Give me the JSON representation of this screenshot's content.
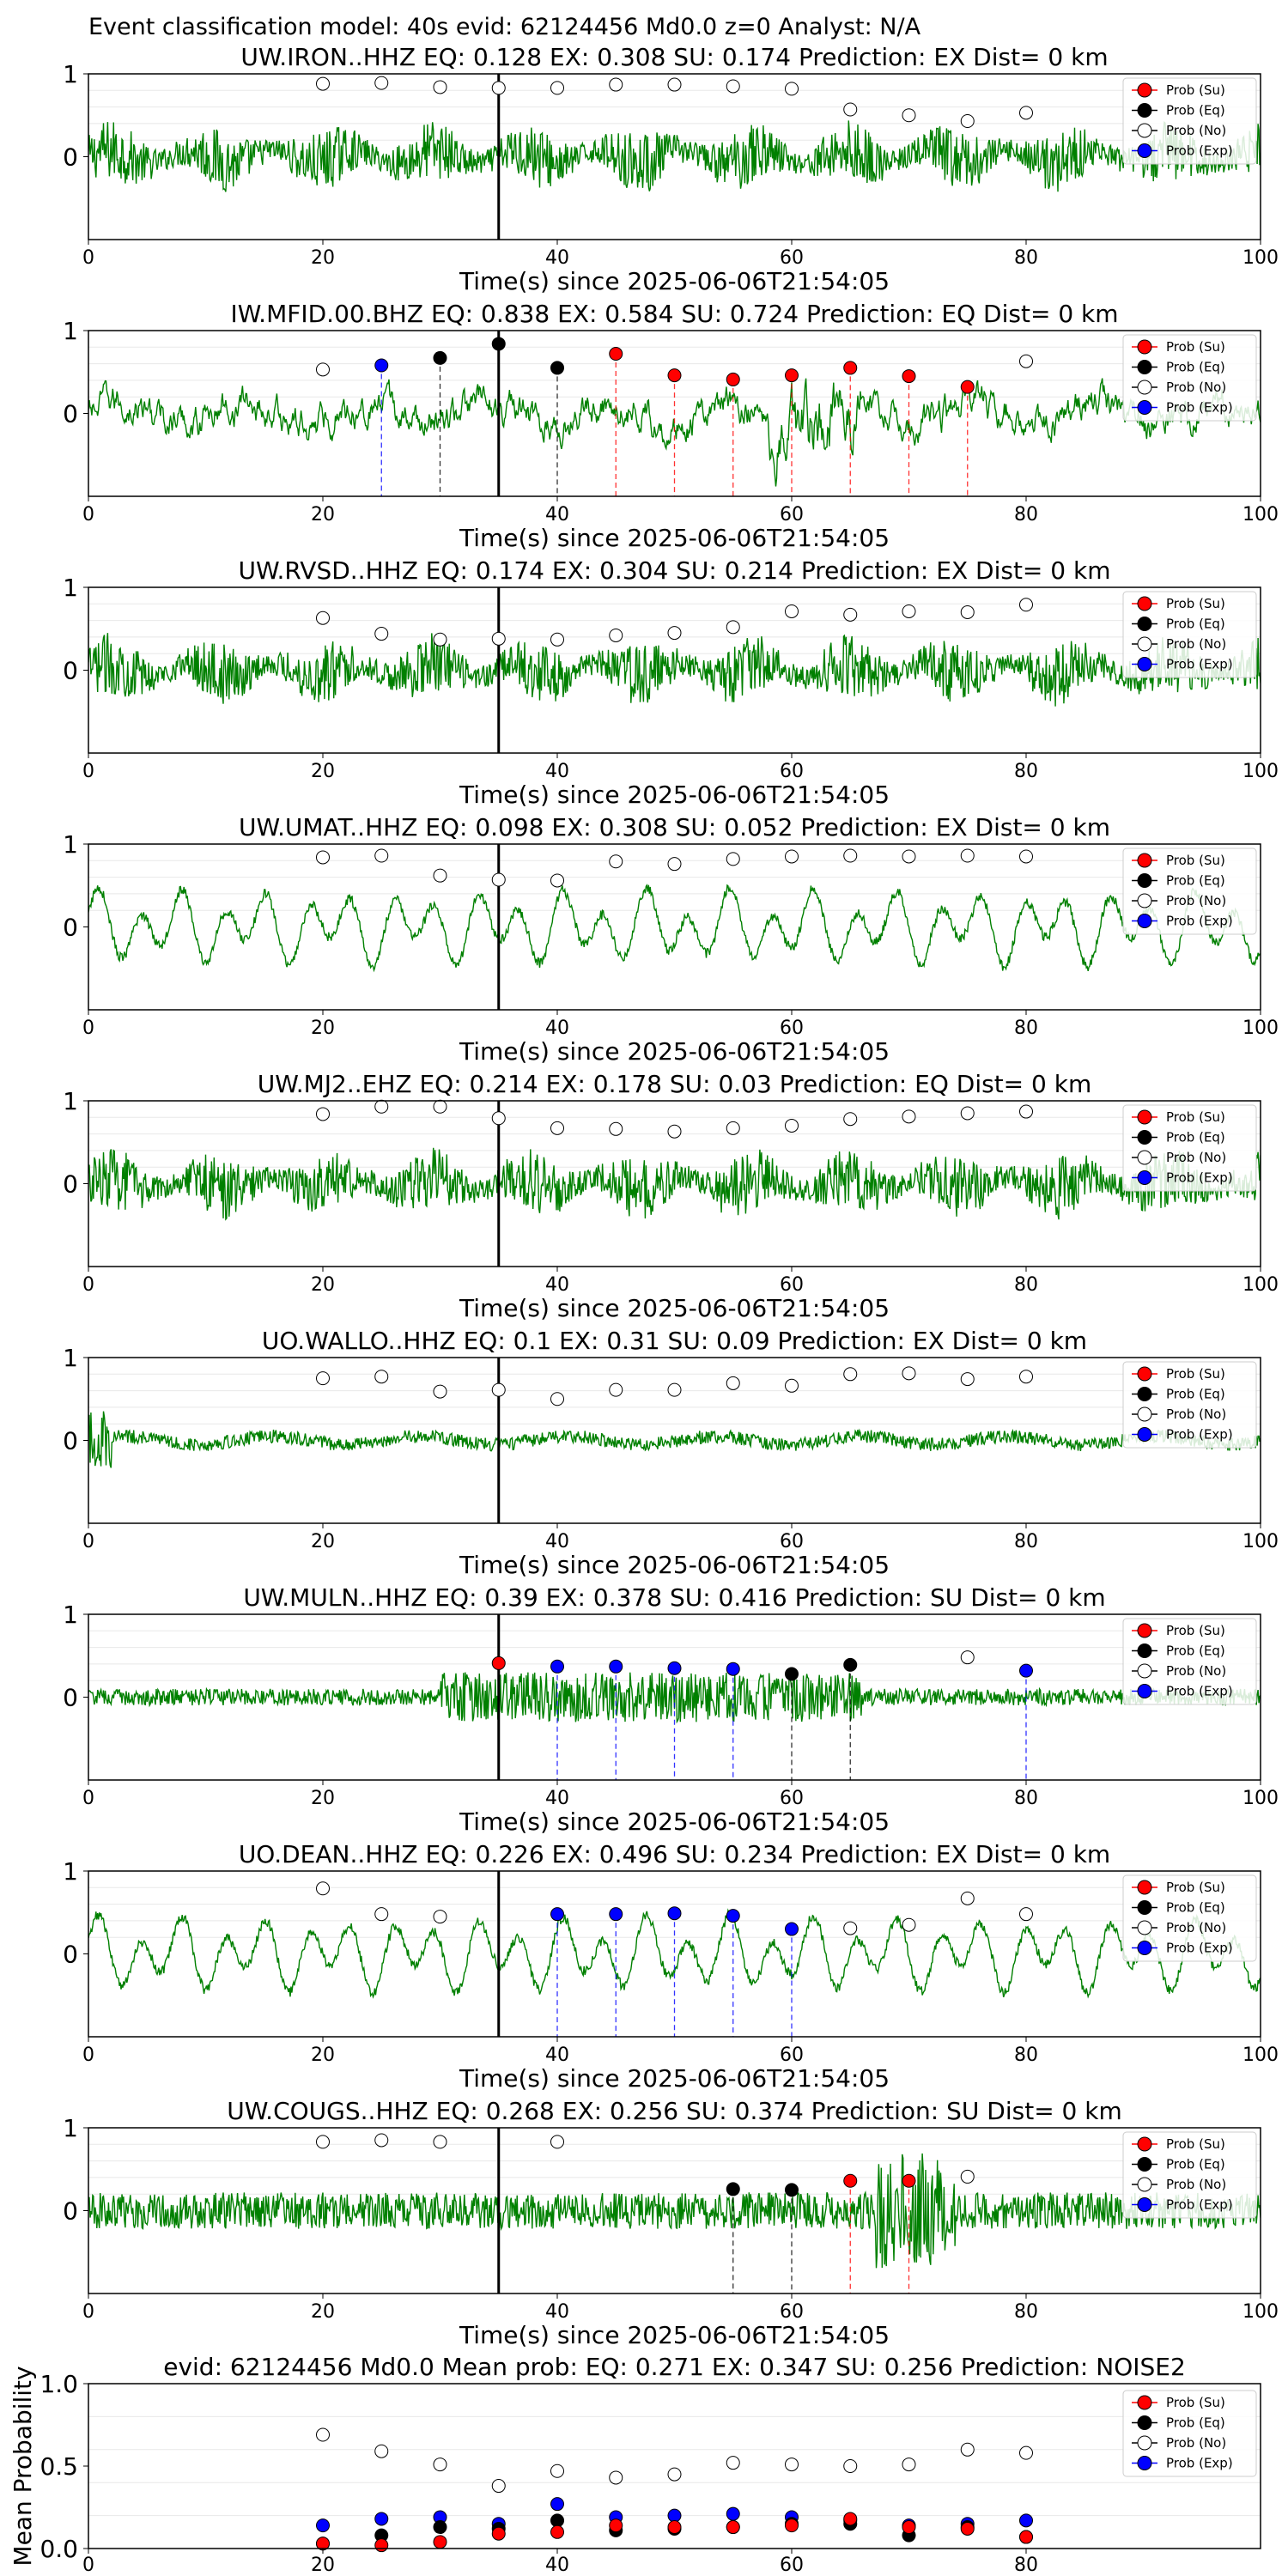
{
  "figure_title": "Event classification model: 40s evid: 62124456 Md0.0 z=0 Analyst: N/A",
  "legend_labels": [
    "Prob (Su)",
    "Prob (Eq)",
    "Prob (No)",
    "Prob (Exp)"
  ],
  "colors": {
    "su": "#ff0000",
    "eq": "#000000",
    "no": "#ffffff",
    "exp": "#0000ff",
    "trace": "#008000",
    "marker": "#000000"
  },
  "xlabel": "Time(s) since 2025-06-06T21:54:05",
  "chart_data": [
    {
      "type": "line",
      "station": "UW.IRON..HHZ",
      "title": "UW.IRON..HHZ   EQ: 0.128  EX: 0.308  SU: 0.174   Prediction: EX    Dist= 0 km",
      "xlim": [
        0,
        100
      ],
      "xticks": [
        0,
        20,
        40,
        60,
        80,
        100
      ],
      "yticks": [
        "1",
        "0"
      ],
      "marker_time": 35,
      "trace_style": "high",
      "points": [
        {
          "x": 20,
          "y": 0.88,
          "cls": "no"
        },
        {
          "x": 25,
          "y": 0.89,
          "cls": "no"
        },
        {
          "x": 30,
          "y": 0.84,
          "cls": "no"
        },
        {
          "x": 35,
          "y": 0.83,
          "cls": "no"
        },
        {
          "x": 40,
          "y": 0.83,
          "cls": "no"
        },
        {
          "x": 45,
          "y": 0.87,
          "cls": "no"
        },
        {
          "x": 50,
          "y": 0.87,
          "cls": "no"
        },
        {
          "x": 55,
          "y": 0.85,
          "cls": "no"
        },
        {
          "x": 60,
          "y": 0.82,
          "cls": "no"
        },
        {
          "x": 65,
          "y": 0.57,
          "cls": "no"
        },
        {
          "x": 70,
          "y": 0.5,
          "cls": "no"
        },
        {
          "x": 75,
          "y": 0.43,
          "cls": "no"
        },
        {
          "x": 80,
          "y": 0.53,
          "cls": "no"
        }
      ]
    },
    {
      "type": "line",
      "station": "IW.MFID.00.BHZ",
      "title": "IW.MFID.00.BHZ   EQ: 0.838  EX: 0.584  SU: 0.724   Prediction: EQ    Dist= 0 km",
      "xlim": [
        0,
        100
      ],
      "xticks": [
        0,
        20,
        40,
        60,
        80,
        100
      ],
      "yticks": [
        "1",
        "0"
      ],
      "marker_time": 35,
      "trace_style": "medium",
      "points": [
        {
          "x": 20,
          "y": 0.53,
          "cls": "no"
        },
        {
          "x": 25,
          "y": 0.58,
          "cls": "exp"
        },
        {
          "x": 30,
          "y": 0.67,
          "cls": "eq"
        },
        {
          "x": 35,
          "y": 0.84,
          "cls": "eq"
        },
        {
          "x": 40,
          "y": 0.55,
          "cls": "eq"
        },
        {
          "x": 45,
          "y": 0.72,
          "cls": "su"
        },
        {
          "x": 50,
          "y": 0.46,
          "cls": "su"
        },
        {
          "x": 55,
          "y": 0.41,
          "cls": "su"
        },
        {
          "x": 60,
          "y": 0.46,
          "cls": "su"
        },
        {
          "x": 65,
          "y": 0.55,
          "cls": "su"
        },
        {
          "x": 70,
          "y": 0.45,
          "cls": "su"
        },
        {
          "x": 75,
          "y": 0.32,
          "cls": "su"
        },
        {
          "x": 80,
          "y": 0.63,
          "cls": "no"
        }
      ]
    },
    {
      "type": "line",
      "station": "UW.RVSD..HHZ",
      "title": "UW.RVSD..HHZ   EQ: 0.174  EX: 0.304  SU: 0.214   Prediction: EX    Dist= 0 km",
      "xlim": [
        0,
        100
      ],
      "xticks": [
        0,
        20,
        40,
        60,
        80,
        100
      ],
      "yticks": [
        "1",
        "0"
      ],
      "marker_time": 35,
      "trace_style": "high",
      "points": [
        {
          "x": 20,
          "y": 0.63,
          "cls": "no"
        },
        {
          "x": 25,
          "y": 0.44,
          "cls": "no"
        },
        {
          "x": 30,
          "y": 0.37,
          "cls": "no"
        },
        {
          "x": 35,
          "y": 0.38,
          "cls": "no"
        },
        {
          "x": 40,
          "y": 0.37,
          "cls": "no"
        },
        {
          "x": 45,
          "y": 0.42,
          "cls": "no"
        },
        {
          "x": 50,
          "y": 0.45,
          "cls": "no"
        },
        {
          "x": 55,
          "y": 0.52,
          "cls": "no"
        },
        {
          "x": 60,
          "y": 0.71,
          "cls": "no"
        },
        {
          "x": 65,
          "y": 0.67,
          "cls": "no"
        },
        {
          "x": 70,
          "y": 0.71,
          "cls": "no"
        },
        {
          "x": 75,
          "y": 0.7,
          "cls": "no"
        },
        {
          "x": 80,
          "y": 0.79,
          "cls": "no"
        }
      ]
    },
    {
      "type": "line",
      "station": "UW.UMAT..HHZ",
      "title": "UW.UMAT..HHZ   EQ: 0.098  EX: 0.308  SU: 0.052   Prediction: EX    Dist= 0 km",
      "xlim": [
        0,
        100
      ],
      "xticks": [
        0,
        20,
        40,
        60,
        80,
        100
      ],
      "yticks": [
        "1",
        "0"
      ],
      "marker_time": 35,
      "trace_style": "wave",
      "points": [
        {
          "x": 20,
          "y": 0.84,
          "cls": "no"
        },
        {
          "x": 25,
          "y": 0.86,
          "cls": "no"
        },
        {
          "x": 30,
          "y": 0.62,
          "cls": "no"
        },
        {
          "x": 35,
          "y": 0.57,
          "cls": "no"
        },
        {
          "x": 40,
          "y": 0.56,
          "cls": "no"
        },
        {
          "x": 45,
          "y": 0.79,
          "cls": "no"
        },
        {
          "x": 50,
          "y": 0.76,
          "cls": "no"
        },
        {
          "x": 55,
          "y": 0.82,
          "cls": "no"
        },
        {
          "x": 60,
          "y": 0.85,
          "cls": "no"
        },
        {
          "x": 65,
          "y": 0.86,
          "cls": "no"
        },
        {
          "x": 70,
          "y": 0.85,
          "cls": "no"
        },
        {
          "x": 75,
          "y": 0.86,
          "cls": "no"
        },
        {
          "x": 80,
          "y": 0.85,
          "cls": "no"
        }
      ]
    },
    {
      "type": "line",
      "station": "UW.MJ2..EHZ",
      "title": "UW.MJ2..EHZ   EQ: 0.214  EX: 0.178  SU: 0.03   Prediction: EQ    Dist= 0 km",
      "xlim": [
        0,
        100
      ],
      "xticks": [
        0,
        20,
        40,
        60,
        80,
        100
      ],
      "yticks": [
        "1",
        "0"
      ],
      "marker_time": 35,
      "trace_style": "high",
      "points": [
        {
          "x": 20,
          "y": 0.84,
          "cls": "no"
        },
        {
          "x": 25,
          "y": 0.93,
          "cls": "no"
        },
        {
          "x": 30,
          "y": 0.93,
          "cls": "no"
        },
        {
          "x": 35,
          "y": 0.79,
          "cls": "no"
        },
        {
          "x": 40,
          "y": 0.67,
          "cls": "no"
        },
        {
          "x": 45,
          "y": 0.66,
          "cls": "no"
        },
        {
          "x": 50,
          "y": 0.63,
          "cls": "no"
        },
        {
          "x": 55,
          "y": 0.67,
          "cls": "no"
        },
        {
          "x": 60,
          "y": 0.7,
          "cls": "no"
        },
        {
          "x": 65,
          "y": 0.78,
          "cls": "no"
        },
        {
          "x": 70,
          "y": 0.81,
          "cls": "no"
        },
        {
          "x": 75,
          "y": 0.85,
          "cls": "no"
        },
        {
          "x": 80,
          "y": 0.87,
          "cls": "no"
        }
      ]
    },
    {
      "type": "line",
      "station": "UO.WALLO..HHZ",
      "title": "UO.WALLO..HHZ   EQ: 0.1  EX: 0.31  SU: 0.09   Prediction: EX    Dist= 0 km",
      "xlim": [
        0,
        100
      ],
      "xticks": [
        0,
        20,
        40,
        60,
        80,
        100
      ],
      "yticks": [
        "1",
        "0"
      ],
      "marker_time": 35,
      "trace_style": "low",
      "points": [
        {
          "x": 20,
          "y": 0.75,
          "cls": "no"
        },
        {
          "x": 25,
          "y": 0.77,
          "cls": "no"
        },
        {
          "x": 30,
          "y": 0.59,
          "cls": "no"
        },
        {
          "x": 35,
          "y": 0.61,
          "cls": "no"
        },
        {
          "x": 40,
          "y": 0.5,
          "cls": "no"
        },
        {
          "x": 45,
          "y": 0.61,
          "cls": "no"
        },
        {
          "x": 50,
          "y": 0.61,
          "cls": "no"
        },
        {
          "x": 55,
          "y": 0.69,
          "cls": "no"
        },
        {
          "x": 60,
          "y": 0.66,
          "cls": "no"
        },
        {
          "x": 65,
          "y": 0.8,
          "cls": "no"
        },
        {
          "x": 70,
          "y": 0.81,
          "cls": "no"
        },
        {
          "x": 75,
          "y": 0.74,
          "cls": "no"
        },
        {
          "x": 80,
          "y": 0.77,
          "cls": "no"
        }
      ]
    },
    {
      "type": "line",
      "station": "UW.MULN..HHZ",
      "title": "UW.MULN..HHZ   EQ: 0.39  EX: 0.378  SU: 0.416   Prediction: SU    Dist= 0 km",
      "xlim": [
        0,
        100
      ],
      "xticks": [
        0,
        20,
        40,
        60,
        80,
        100
      ],
      "yticks": [
        "1",
        "0"
      ],
      "marker_time": 35,
      "trace_style": "burst",
      "points": [
        {
          "x": 35,
          "y": 0.41,
          "cls": "su"
        },
        {
          "x": 40,
          "y": 0.37,
          "cls": "exp"
        },
        {
          "x": 45,
          "y": 0.37,
          "cls": "exp"
        },
        {
          "x": 50,
          "y": 0.35,
          "cls": "exp"
        },
        {
          "x": 55,
          "y": 0.34,
          "cls": "exp"
        },
        {
          "x": 60,
          "y": 0.28,
          "cls": "eq"
        },
        {
          "x": 65,
          "y": 0.39,
          "cls": "eq"
        },
        {
          "x": 75,
          "y": 0.48,
          "cls": "no"
        },
        {
          "x": 80,
          "y": 0.32,
          "cls": "exp"
        }
      ]
    },
    {
      "type": "line",
      "station": "UO.DEAN..HHZ",
      "title": "UO.DEAN..HHZ   EQ: 0.226  EX: 0.496  SU: 0.234   Prediction: EX    Dist= 0 km",
      "xlim": [
        0,
        100
      ],
      "xticks": [
        0,
        20,
        40,
        60,
        80,
        100
      ],
      "yticks": [
        "1",
        "0"
      ],
      "marker_time": 35,
      "trace_style": "wave",
      "points": [
        {
          "x": 20,
          "y": 0.79,
          "cls": "no"
        },
        {
          "x": 25,
          "y": 0.48,
          "cls": "no"
        },
        {
          "x": 30,
          "y": 0.45,
          "cls": "no"
        },
        {
          "x": 40,
          "y": 0.48,
          "cls": "exp"
        },
        {
          "x": 45,
          "y": 0.48,
          "cls": "exp"
        },
        {
          "x": 50,
          "y": 0.49,
          "cls": "exp"
        },
        {
          "x": 55,
          "y": 0.46,
          "cls": "exp"
        },
        {
          "x": 60,
          "y": 0.3,
          "cls": "exp"
        },
        {
          "x": 65,
          "y": 0.31,
          "cls": "no"
        },
        {
          "x": 70,
          "y": 0.35,
          "cls": "no"
        },
        {
          "x": 75,
          "y": 0.67,
          "cls": "no"
        },
        {
          "x": 80,
          "y": 0.48,
          "cls": "no"
        }
      ]
    },
    {
      "type": "line",
      "station": "UW.COUGS..HHZ",
      "title": "UW.COUGS..HHZ   EQ: 0.268  EX: 0.256  SU: 0.374   Prediction: SU    Dist= 0 km",
      "xlim": [
        0,
        100
      ],
      "xticks": [
        0,
        20,
        40,
        60,
        80,
        100
      ],
      "yticks": [
        "1",
        "0"
      ],
      "marker_time": 35,
      "trace_style": "late",
      "points": [
        {
          "x": 20,
          "y": 0.83,
          "cls": "no"
        },
        {
          "x": 25,
          "y": 0.85,
          "cls": "no"
        },
        {
          "x": 30,
          "y": 0.83,
          "cls": "no"
        },
        {
          "x": 40,
          "y": 0.83,
          "cls": "no"
        },
        {
          "x": 55,
          "y": 0.26,
          "cls": "eq"
        },
        {
          "x": 60,
          "y": 0.25,
          "cls": "eq"
        },
        {
          "x": 65,
          "y": 0.36,
          "cls": "su"
        },
        {
          "x": 70,
          "y": 0.36,
          "cls": "su"
        },
        {
          "x": 75,
          "y": 0.41,
          "cls": "no"
        }
      ]
    },
    {
      "type": "scatter",
      "station": "mean",
      "title": "evid: 62124456  Md0.0   Mean prob:    EQ: 0.271  EX: 0.347  SU: 0.256   Prediction: NOISE2",
      "ylabel": "Mean Probability",
      "xlim": [
        0,
        100
      ],
      "ylim": [
        0,
        1
      ],
      "xticks": [
        0,
        20,
        40,
        60,
        80
      ],
      "yticks": [
        "1.0",
        "0.5",
        "0.0"
      ],
      "x": [
        20,
        25,
        30,
        35,
        40,
        45,
        50,
        55,
        60,
        65,
        70,
        75,
        80
      ],
      "series": [
        {
          "cls": "no",
          "values": [
            0.69,
            0.59,
            0.51,
            0.38,
            0.47,
            0.43,
            0.45,
            0.52,
            0.51,
            0.5,
            0.51,
            0.6,
            0.58
          ]
        },
        {
          "cls": "exp",
          "values": [
            0.14,
            0.18,
            0.19,
            0.15,
            0.27,
            0.19,
            0.2,
            0.21,
            0.19,
            0.17,
            0.14,
            0.15,
            0.17
          ]
        },
        {
          "cls": "eq",
          "values": [
            0.03,
            0.08,
            0.13,
            0.12,
            0.17,
            0.11,
            0.12,
            0.13,
            0.15,
            0.15,
            0.08,
            0.13,
            0.07
          ]
        },
        {
          "cls": "su",
          "values": [
            0.03,
            0.02,
            0.04,
            0.09,
            0.1,
            0.14,
            0.13,
            0.13,
            0.14,
            0.18,
            0.13,
            0.12,
            0.07
          ]
        }
      ]
    }
  ]
}
